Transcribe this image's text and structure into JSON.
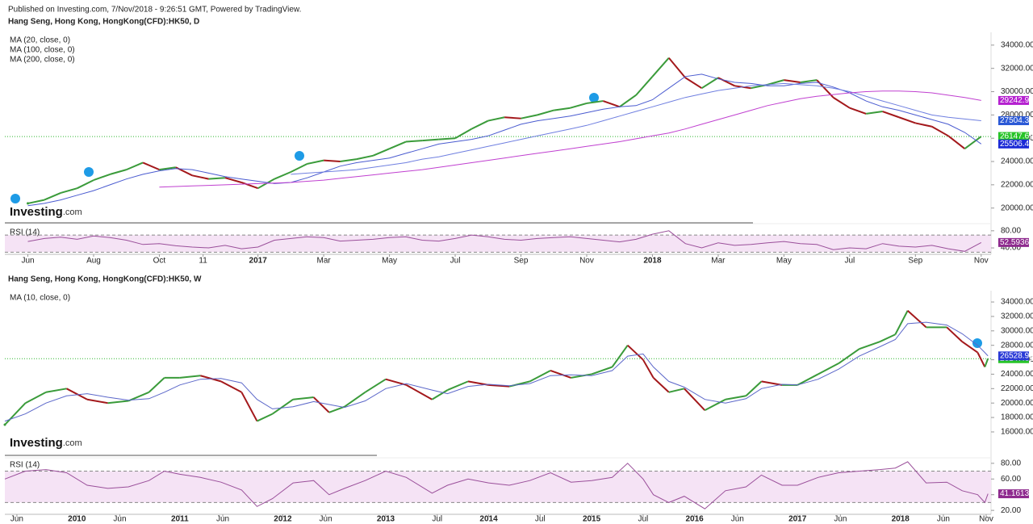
{
  "header": "Published on Investing.com, 7/Nov/2018 - 9:26:51 GMT, Powered by TradingView.",
  "logo": [
    "Investing",
    ".com"
  ],
  "chart_data": [
    {
      "type": "line",
      "title": "Hang Seng, Hong Kong, HongKong(CFD):HK50, D",
      "x": [
        0,
        0.5,
        1,
        1.5,
        2,
        2.5,
        3,
        3.5,
        4,
        4.5,
        5,
        5.5,
        6,
        6.5,
        7,
        7.5,
        8,
        8.5,
        9,
        9.5,
        10,
        10.5,
        11,
        11.5,
        12,
        12.5,
        13,
        13.5,
        14,
        14.5,
        15,
        15.5,
        16,
        16.5,
        17,
        17.5,
        18,
        18.5,
        19,
        19.5,
        20,
        20.5,
        21,
        21.5,
        22,
        22.5,
        23,
        23.5,
        24,
        24.5,
        25,
        25.5,
        26,
        26.5,
        27,
        27.5,
        28,
        28.5,
        29
      ],
      "xlim": [
        -0.7,
        29.3
      ],
      "xticks": [
        {
          "value": 0,
          "label": "Jun"
        },
        {
          "value": 2,
          "label": "Aug"
        },
        {
          "value": 4,
          "label": "Oct"
        },
        {
          "value": 5.33,
          "label": "11"
        },
        {
          "value": 7,
          "label": "2017"
        },
        {
          "value": 9,
          "label": "Mar"
        },
        {
          "value": 11,
          "label": "May"
        },
        {
          "value": 13,
          "label": "Jul"
        },
        {
          "value": 15,
          "label": "Sep"
        },
        {
          "value": 17,
          "label": "Nov"
        },
        {
          "value": 19,
          "label": "2018"
        },
        {
          "value": 21,
          "label": "Mar"
        },
        {
          "value": 23,
          "label": "May"
        },
        {
          "value": 25,
          "label": "Jul"
        },
        {
          "value": 27,
          "label": "Sep"
        },
        {
          "value": 29,
          "label": "Nov"
        }
      ],
      "ylim": [
        18800,
        35100
      ],
      "yticks": [
        {
          "value": 20000,
          "label": "20000.00"
        },
        {
          "value": 22000,
          "label": "22000.00"
        },
        {
          "value": 24000,
          "label": "24000.00"
        },
        {
          "value": 26000,
          "label": "26000.00"
        },
        {
          "value": 28000,
          "label": "28000.00"
        },
        {
          "value": 30000,
          "label": "30000.00"
        },
        {
          "value": 32000,
          "label": "32000.00"
        },
        {
          "value": 34000,
          "label": "34000.00"
        }
      ],
      "series": [
        {
          "style": "candles",
          "color": "#3a9b3a",
          "color_down": "#a3181b",
          "tag_color": "#27c427",
          "last_label": "26147.69",
          "values": [
            20400,
            20700,
            21300,
            21700,
            22400,
            22900,
            23300,
            23900,
            23300,
            23500,
            22800,
            22500,
            22600,
            22200,
            21700,
            22500,
            23100,
            23800,
            24100,
            24000,
            24200,
            24500,
            25100,
            25700,
            25800,
            25900,
            26000,
            26800,
            27500,
            27800,
            27700,
            28000,
            28400,
            28600,
            29000,
            29200,
            28700,
            29700,
            31300,
            32900,
            31200,
            30300,
            31200,
            30500,
            30300,
            30600,
            31000,
            30800,
            31000,
            29500,
            28600,
            28100,
            28300,
            27800,
            27300,
            27000,
            26200,
            25100,
            26147.69
          ]
        },
        {
          "name": "MA (20, close, 0)",
          "color": "#4a5bd0",
          "tag_color": "#1c2bd6",
          "last_label": "25506.42",
          "values": [
            20200,
            20400,
            20700,
            21100,
            21500,
            22000,
            22500,
            22900,
            23200,
            23400,
            23300,
            23000,
            22700,
            22500,
            22300,
            22100,
            22200,
            22600,
            23100,
            23600,
            23900,
            24100,
            24300,
            24700,
            25100,
            25500,
            25700,
            25900,
            26200,
            26700,
            27200,
            27500,
            27700,
            27900,
            28200,
            28500,
            28700,
            28800,
            29300,
            30300,
            31300,
            31500,
            31100,
            30800,
            30700,
            30500,
            30500,
            30700,
            30800,
            30400,
            29900,
            29200,
            28700,
            28400,
            28000,
            27600,
            27200,
            26500,
            25506.42
          ]
        },
        {
          "name": "MA (100, close, 0)",
          "color": "#6f7fe0",
          "tag_color": "#2b59d6",
          "last_label": "27504.36",
          "values": [
            null,
            null,
            null,
            null,
            null,
            null,
            null,
            null,
            null,
            null,
            null,
            null,
            null,
            null,
            null,
            null,
            22900,
            23000,
            23100,
            23200,
            23300,
            23500,
            23700,
            23900,
            24200,
            24400,
            24700,
            25000,
            25300,
            25600,
            25900,
            26200,
            26500,
            26800,
            27100,
            27500,
            27900,
            28300,
            28700,
            29100,
            29500,
            29800,
            30100,
            30300,
            30500,
            30600,
            30700,
            30600,
            30500,
            30300,
            30000,
            29600,
            29200,
            28800,
            28400,
            28000,
            27800,
            27650,
            27504.36
          ]
        },
        {
          "name": "MA (200, close, 0)",
          "color": "#c040d0",
          "tag_color": "#b521d0",
          "last_label": "29242.92",
          "values": [
            null,
            null,
            null,
            null,
            null,
            null,
            null,
            null,
            21800,
            21850,
            21900,
            21950,
            22000,
            22050,
            22100,
            22150,
            22200,
            22300,
            22400,
            22550,
            22700,
            22850,
            23000,
            23150,
            23300,
            23500,
            23700,
            23900,
            24100,
            24300,
            24500,
            24700,
            24900,
            25100,
            25300,
            25500,
            25700,
            25950,
            26200,
            26450,
            26800,
            27200,
            27600,
            28000,
            28400,
            28800,
            29100,
            29400,
            29600,
            29750,
            29900,
            30000,
            30050,
            30050,
            30000,
            29900,
            29700,
            29500,
            29242.92
          ]
        }
      ],
      "rsi": {
        "label": "RSI (14)",
        "color": "#9a4f9a",
        "tag_color": "#8e2a8e",
        "last_label": "52.5936",
        "ylim": [
          25,
          91
        ],
        "yticks": [
          {
            "value": 80,
            "label": "80.00"
          },
          {
            "value": 40,
            "label": "40.00"
          }
        ],
        "bands": [
          30,
          70
        ],
        "values": [
          55,
          62,
          65,
          60,
          68,
          64,
          58,
          48,
          50,
          45,
          42,
          40,
          46,
          38,
          42,
          58,
          62,
          66,
          64,
          56,
          58,
          60,
          64,
          66,
          58,
          56,
          62,
          70,
          66,
          60,
          58,
          62,
          64,
          66,
          62,
          58,
          54,
          60,
          72,
          80,
          50,
          40,
          52,
          46,
          48,
          52,
          55,
          50,
          48,
          36,
          40,
          38,
          50,
          44,
          42,
          46,
          38,
          32,
          52.5936
        ]
      }
    },
    {
      "type": "line",
      "title": "Hang Seng, Hong Kong, HongKong(CFD):HK50, W",
      "x": [
        2009.3,
        2009.5,
        2009.7,
        2009.9,
        2010.1,
        2010.3,
        2010.5,
        2010.7,
        2010.85,
        2011.0,
        2011.2,
        2011.4,
        2011.6,
        2011.75,
        2011.9,
        2012.1,
        2012.3,
        2012.45,
        2012.6,
        2012.8,
        2013.0,
        2013.2,
        2013.45,
        2013.6,
        2013.8,
        2014.0,
        2014.2,
        2014.4,
        2014.6,
        2014.8,
        2015.0,
        2015.2,
        2015.35,
        2015.5,
        2015.6,
        2015.75,
        2015.9,
        2016.1,
        2016.3,
        2016.5,
        2016.65,
        2016.85,
        2017.0,
        2017.2,
        2017.4,
        2017.6,
        2017.8,
        2017.95,
        2018.07,
        2018.25,
        2018.45,
        2018.6,
        2018.75,
        2018.82,
        2018.85
      ],
      "xlim": [
        2009.3,
        2018.88
      ],
      "xticks": [
        {
          "value": 2009.417,
          "label": "Jun"
        },
        2010,
        {
          "value": 2010.417,
          "label": "Jun"
        },
        2011,
        {
          "value": 2011.417,
          "label": "Jun"
        },
        2012,
        {
          "value": 2012.417,
          "label": "Jun"
        },
        2013,
        {
          "value": 2013.5,
          "label": "Jul"
        },
        2014,
        {
          "value": 2014.5,
          "label": "Jul"
        },
        2015,
        {
          "value": 2015.5,
          "label": "Jul"
        },
        2016,
        {
          "value": 2016.417,
          "label": "Jun"
        },
        2017,
        {
          "value": 2017.417,
          "label": "Jun"
        },
        2018,
        {
          "value": 2018.417,
          "label": "Jun"
        },
        {
          "value": 2018.833,
          "label": "Nov"
        }
      ],
      "ylim": [
        12640,
        35570
      ],
      "yticks": [
        {
          "value": 16000,
          "label": "16000.00"
        },
        {
          "value": 18000,
          "label": "18000.00"
        },
        {
          "value": 20000,
          "label": "20000.00"
        },
        {
          "value": 22000,
          "label": "22000.00"
        },
        {
          "value": 24000,
          "label": "24000.00"
        },
        {
          "value": 26000,
          "label": "26000.00"
        },
        {
          "value": 28000,
          "label": "28000.00"
        },
        {
          "value": 30000,
          "label": "30000.00"
        },
        {
          "value": 32000,
          "label": "32000.00"
        },
        {
          "value": 34000,
          "label": "34000.00"
        }
      ],
      "series": [
        {
          "style": "candles",
          "color": "#3a9b3a",
          "color_down": "#a3181b",
          "tag_color": "#27c427",
          "last_label": "26147.69",
          "values": [
            17000,
            20000,
            21500,
            22000,
            20500,
            20000,
            20300,
            21500,
            23500,
            23500,
            23800,
            23000,
            21500,
            17500,
            18500,
            20500,
            20800,
            18700,
            19500,
            21500,
            23300,
            22500,
            20500,
            21800,
            23000,
            22500,
            22300,
            23000,
            24500,
            23500,
            24000,
            25000,
            28000,
            26000,
            23500,
            21500,
            22000,
            19000,
            20500,
            21000,
            23000,
            22500,
            22500,
            24000,
            25500,
            27500,
            28500,
            29500,
            32800,
            30500,
            30500,
            28500,
            27000,
            25000,
            26147.69
          ]
        },
        {
          "name": "MA (10, close, 0)",
          "color": "#5b67c9",
          "tag_color": "#2a3ad6",
          "last_label": "26528.91",
          "values": [
            17500,
            18500,
            20000,
            21000,
            21300,
            20800,
            20400,
            20600,
            21500,
            22500,
            23300,
            23400,
            22800,
            20500,
            19200,
            19500,
            20200,
            19800,
            19400,
            20300,
            22000,
            22700,
            21800,
            21300,
            22300,
            22600,
            22400,
            22700,
            23800,
            23900,
            23800,
            24500,
            26500,
            26800,
            25000,
            23000,
            22200,
            20500,
            20000,
            20600,
            22000,
            22600,
            22500,
            23300,
            24700,
            26500,
            27800,
            28800,
            31000,
            31200,
            30800,
            29600,
            28000,
            27000,
            26528.91
          ]
        }
      ],
      "rsi": {
        "label": "RSI (14)",
        "color": "#9a4f9a",
        "tag_color": "#8e2a8e",
        "last_label": "41.1613",
        "ylim": [
          15,
          86
        ],
        "yticks": [
          {
            "value": 80,
            "label": "80.00"
          },
          {
            "value": 60,
            "label": "60.00"
          },
          {
            "value": 40,
            "label": "40.00"
          },
          {
            "value": 20,
            "label": "20.00"
          }
        ],
        "bands": [
          30,
          70
        ],
        "values": [
          60,
          70,
          72,
          68,
          52,
          48,
          50,
          58,
          70,
          66,
          62,
          56,
          46,
          25,
          35,
          55,
          58,
          40,
          48,
          58,
          70,
          62,
          42,
          52,
          60,
          55,
          52,
          58,
          68,
          56,
          58,
          62,
          80,
          60,
          40,
          30,
          38,
          22,
          45,
          50,
          65,
          52,
          52,
          62,
          68,
          70,
          72,
          74,
          82,
          55,
          56,
          45,
          40,
          30,
          41.1613
        ]
      }
    }
  ]
}
